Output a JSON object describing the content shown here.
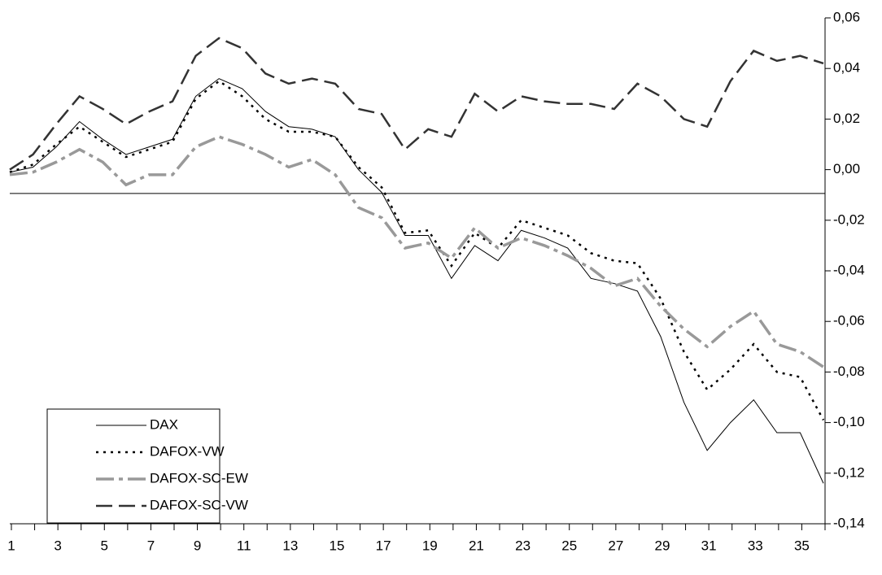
{
  "chart_data": {
    "type": "line",
    "categories": [
      1,
      null,
      3,
      null,
      5,
      null,
      7,
      null,
      9,
      null,
      11,
      null,
      13,
      null,
      15,
      null,
      17,
      null,
      19,
      null,
      21,
      null,
      23,
      null,
      25,
      null,
      27,
      null,
      29,
      null,
      31,
      null,
      33,
      null,
      35,
      null
    ],
    "series": [
      {
        "name": "DAX",
        "color": "#000000",
        "width": 1,
        "dash": "none",
        "values": [
          -0.001,
          0.001,
          0.009,
          0.019,
          0.012,
          0.006,
          0.009,
          0.012,
          0.029,
          0.036,
          0.032,
          0.023,
          0.017,
          0.016,
          0.013,
          0.0,
          -0.009,
          -0.026,
          -0.026,
          -0.043,
          -0.03,
          -0.036,
          -0.024,
          -0.027,
          -0.031,
          -0.043,
          -0.045,
          -0.048,
          -0.066,
          -0.092,
          -0.111,
          -0.1,
          -0.091,
          -0.104,
          -0.104,
          -0.124
        ]
      },
      {
        "name": "DAFOX-VW",
        "color": "#000000",
        "width": 2.5,
        "dash": "3,6",
        "values": [
          -0.001,
          0.002,
          0.01,
          0.017,
          0.011,
          0.005,
          0.008,
          0.011,
          0.028,
          0.035,
          0.029,
          0.02,
          0.015,
          0.015,
          0.013,
          0.001,
          -0.007,
          -0.025,
          -0.024,
          -0.038,
          -0.025,
          -0.031,
          -0.02,
          -0.023,
          -0.026,
          -0.033,
          -0.036,
          -0.037,
          -0.051,
          -0.072,
          -0.087,
          -0.079,
          -0.069,
          -0.08,
          -0.082,
          -0.099
        ]
      },
      {
        "name": "DAFOX-SC-EW",
        "color": "#999999",
        "width": 3.5,
        "dash": "22,6,5,6",
        "values": [
          -0.002,
          -0.001,
          0.003,
          0.008,
          0.003,
          -0.006,
          -0.002,
          -0.002,
          0.009,
          0.013,
          0.01,
          0.006,
          0.001,
          0.004,
          -0.002,
          -0.015,
          -0.019,
          -0.031,
          -0.029,
          -0.035,
          -0.023,
          -0.031,
          -0.027,
          -0.03,
          -0.034,
          -0.039,
          -0.046,
          -0.043,
          -0.054,
          -0.063,
          -0.07,
          -0.062,
          -0.056,
          -0.069,
          -0.072,
          -0.078
        ]
      },
      {
        "name": "DAFOX-SC-VW",
        "color": "#333333",
        "width": 2.5,
        "dash": "20,8",
        "values": [
          0.0,
          0.006,
          0.018,
          0.029,
          0.024,
          0.018,
          0.023,
          0.027,
          0.045,
          0.052,
          0.048,
          0.038,
          0.034,
          0.036,
          0.034,
          0.024,
          0.022,
          0.008,
          0.016,
          0.013,
          0.03,
          0.023,
          0.029,
          0.027,
          0.026,
          0.026,
          0.024,
          0.034,
          0.029,
          0.02,
          0.017,
          0.035,
          0.047,
          0.043,
          0.045,
          0.042
        ]
      }
    ],
    "ylim": [
      -0.14,
      0.06
    ],
    "yticks": [
      {
        "value": 0.06,
        "label": "0,06"
      },
      {
        "value": 0.04,
        "label": "0,04"
      },
      {
        "value": 0.02,
        "label": "0,02"
      },
      {
        "value": 0,
        "label": "0,00"
      },
      {
        "value": -0.02,
        "label": "-0,02"
      },
      {
        "value": -0.04,
        "label": "-0,04"
      },
      {
        "value": -0.06,
        "label": "-0,06"
      },
      {
        "value": -0.08,
        "label": "-0,08"
      },
      {
        "value": -0.1,
        "label": "-0,10"
      },
      {
        "value": -0.12,
        "label": "-0,12"
      },
      {
        "value": -0.14,
        "label": "-0,14"
      }
    ],
    "hline": -0.0094,
    "grid": false,
    "legend": "bottom-left"
  }
}
